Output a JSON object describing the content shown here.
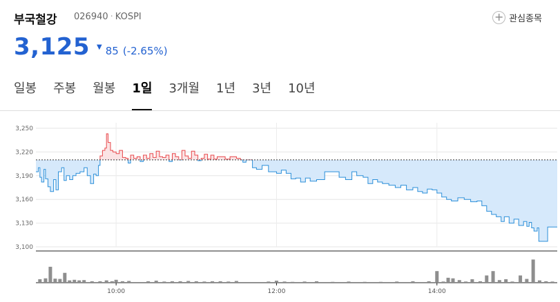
{
  "header": {
    "name": "부국철강",
    "code": "026940",
    "market": "KOSPI",
    "watch_label": "관심종목"
  },
  "quote": {
    "price": "3,125",
    "change": "85",
    "change_pct": "(-2.65%)",
    "direction_color": "#2362d1"
  },
  "tabs": [
    {
      "label": "일봉"
    },
    {
      "label": "주봉"
    },
    {
      "label": "월봉"
    },
    {
      "label": "1일"
    },
    {
      "label": "3개월"
    },
    {
      "label": "1년"
    },
    {
      "label": "3년"
    },
    {
      "label": "10년"
    }
  ],
  "active_tab": 3,
  "chart_data": {
    "type": "area",
    "baseline": 3210,
    "ylim": [
      3100,
      3250
    ],
    "y_ticks": [
      "3,250",
      "3,220",
      "3,190",
      "3,160",
      "3,130",
      "3,100"
    ],
    "y_tick_values": [
      3250,
      3220,
      3190,
      3160,
      3130,
      3100
    ],
    "x_ticks": [
      "10:00",
      "12:00",
      "14:00"
    ],
    "x_tick_times": [
      10.0,
      12.0,
      14.0
    ],
    "xlim": [
      9.0,
      15.5
    ],
    "up_color": "#e8474a",
    "down_color": "#2b8fd9",
    "price_series": [
      [
        9.0,
        3195
      ],
      [
        9.03,
        3200
      ],
      [
        9.05,
        3188
      ],
      [
        9.07,
        3182
      ],
      [
        9.1,
        3198
      ],
      [
        9.12,
        3186
      ],
      [
        9.15,
        3176
      ],
      [
        9.18,
        3170
      ],
      [
        9.22,
        3185
      ],
      [
        9.25,
        3172
      ],
      [
        9.28,
        3195
      ],
      [
        9.32,
        3200
      ],
      [
        9.35,
        3184
      ],
      [
        9.38,
        3190
      ],
      [
        9.42,
        3185
      ],
      [
        9.46,
        3190
      ],
      [
        9.5,
        3193
      ],
      [
        9.55,
        3195
      ],
      [
        9.6,
        3200
      ],
      [
        9.64,
        3190
      ],
      [
        9.68,
        3180
      ],
      [
        9.72,
        3192
      ],
      [
        9.75,
        3190
      ],
      [
        9.78,
        3203
      ],
      [
        9.8,
        3215
      ],
      [
        9.83,
        3222
      ],
      [
        9.86,
        3225
      ],
      [
        9.88,
        3243
      ],
      [
        9.9,
        3232
      ],
      [
        9.93,
        3222
      ],
      [
        9.96,
        3220
      ],
      [
        10.0,
        3218
      ],
      [
        10.04,
        3222
      ],
      [
        10.08,
        3213
      ],
      [
        10.12,
        3212
      ],
      [
        10.15,
        3206
      ],
      [
        10.18,
        3216
      ],
      [
        10.22,
        3212
      ],
      [
        10.26,
        3214
      ],
      [
        10.3,
        3208
      ],
      [
        10.34,
        3216
      ],
      [
        10.38,
        3212
      ],
      [
        10.42,
        3218
      ],
      [
        10.46,
        3213
      ],
      [
        10.5,
        3221
      ],
      [
        10.54,
        3214
      ],
      [
        10.58,
        3213
      ],
      [
        10.62,
        3216
      ],
      [
        10.66,
        3208
      ],
      [
        10.7,
        3218
      ],
      [
        10.74,
        3214
      ],
      [
        10.78,
        3210
      ],
      [
        10.82,
        3222
      ],
      [
        10.86,
        3215
      ],
      [
        10.9,
        3212
      ],
      [
        10.94,
        3221
      ],
      [
        10.98,
        3216
      ],
      [
        11.02,
        3209
      ],
      [
        11.06,
        3212
      ],
      [
        11.1,
        3217
      ],
      [
        11.14,
        3211
      ],
      [
        11.18,
        3216
      ],
      [
        11.22,
        3211
      ],
      [
        11.26,
        3214
      ],
      [
        11.3,
        3214
      ],
      [
        11.36,
        3211
      ],
      [
        11.42,
        3214
      ],
      [
        11.46,
        3214
      ],
      [
        11.5,
        3212
      ],
      [
        11.55,
        3210
      ],
      [
        11.58,
        3207
      ],
      [
        11.62,
        3210
      ],
      [
        11.66,
        3210
      ],
      [
        11.7,
        3200
      ],
      [
        11.75,
        3198
      ],
      [
        11.82,
        3203
      ],
      [
        11.9,
        3195
      ],
      [
        12.0,
        3193
      ],
      [
        12.06,
        3197
      ],
      [
        12.12,
        3193
      ],
      [
        12.18,
        3186
      ],
      [
        12.24,
        3187
      ],
      [
        12.3,
        3182
      ],
      [
        12.36,
        3187
      ],
      [
        12.42,
        3183
      ],
      [
        12.5,
        3185
      ],
      [
        12.6,
        3195
      ],
      [
        12.7,
        3195
      ],
      [
        12.78,
        3188
      ],
      [
        12.86,
        3185
      ],
      [
        12.94,
        3195
      ],
      [
        13.0,
        3190
      ],
      [
        13.08,
        3188
      ],
      [
        13.14,
        3180
      ],
      [
        13.2,
        3185
      ],
      [
        13.26,
        3182
      ],
      [
        13.32,
        3180
      ],
      [
        13.4,
        3178
      ],
      [
        13.48,
        3175
      ],
      [
        13.55,
        3178
      ],
      [
        13.62,
        3172
      ],
      [
        13.7,
        3175
      ],
      [
        13.76,
        3170
      ],
      [
        13.82,
        3168
      ],
      [
        13.88,
        3173
      ],
      [
        13.94,
        3172
      ],
      [
        14.0,
        3168
      ],
      [
        14.06,
        3163
      ],
      [
        14.12,
        3160
      ],
      [
        14.18,
        3158
      ],
      [
        14.26,
        3162
      ],
      [
        14.34,
        3160
      ],
      [
        14.42,
        3157
      ],
      [
        14.5,
        3158
      ],
      [
        14.56,
        3152
      ],
      [
        14.62,
        3145
      ],
      [
        14.68,
        3141
      ],
      [
        14.74,
        3138
      ],
      [
        14.8,
        3132
      ],
      [
        14.84,
        3138
      ],
      [
        14.9,
        3130
      ],
      [
        14.96,
        3135
      ],
      [
        15.02,
        3127
      ],
      [
        15.08,
        3132
      ],
      [
        15.12,
        3126
      ],
      [
        15.15,
        3131
      ],
      [
        15.18,
        3124
      ],
      [
        15.21,
        3120
      ],
      [
        15.25,
        3124
      ],
      [
        15.27,
        3107
      ],
      [
        15.34,
        3107
      ],
      [
        15.38,
        3125
      ],
      [
        15.5,
        3125
      ]
    ],
    "volume_ylim": [
      0,
      100
    ],
    "volume": [
      [
        9.05,
        12
      ],
      [
        9.12,
        15
      ],
      [
        9.18,
        55
      ],
      [
        9.24,
        14
      ],
      [
        9.3,
        13
      ],
      [
        9.36,
        34
      ],
      [
        9.42,
        8
      ],
      [
        9.48,
        10
      ],
      [
        9.54,
        8
      ],
      [
        9.6,
        9
      ],
      [
        9.7,
        5
      ],
      [
        9.8,
        5
      ],
      [
        9.88,
        8
      ],
      [
        9.95,
        5
      ],
      [
        10.0,
        10
      ],
      [
        10.08,
        5
      ],
      [
        10.16,
        6
      ],
      [
        10.4,
        5
      ],
      [
        10.5,
        7
      ],
      [
        10.6,
        4
      ],
      [
        10.7,
        5
      ],
      [
        10.8,
        5
      ],
      [
        10.9,
        6
      ],
      [
        11.0,
        5
      ],
      [
        11.1,
        4
      ],
      [
        11.2,
        5
      ],
      [
        11.3,
        5
      ],
      [
        11.4,
        4
      ],
      [
        11.5,
        6
      ],
      [
        11.9,
        4
      ],
      [
        12.0,
        7
      ],
      [
        12.1,
        4
      ],
      [
        12.2,
        3
      ],
      [
        12.35,
        4
      ],
      [
        12.5,
        5
      ],
      [
        12.7,
        3
      ],
      [
        12.9,
        4
      ],
      [
        13.1,
        3
      ],
      [
        13.3,
        3
      ],
      [
        13.5,
        4
      ],
      [
        13.7,
        5
      ],
      [
        13.9,
        5
      ],
      [
        14.0,
        40
      ],
      [
        14.08,
        4
      ],
      [
        14.14,
        17
      ],
      [
        14.2,
        15
      ],
      [
        14.28,
        9
      ],
      [
        14.36,
        4
      ],
      [
        14.44,
        12
      ],
      [
        14.54,
        5
      ],
      [
        14.62,
        25
      ],
      [
        14.7,
        40
      ],
      [
        14.78,
        9
      ],
      [
        14.86,
        12
      ],
      [
        14.94,
        4
      ],
      [
        15.04,
        25
      ],
      [
        15.12,
        13
      ],
      [
        15.2,
        80
      ],
      [
        15.28,
        8
      ],
      [
        15.36,
        5
      ],
      [
        15.44,
        4
      ]
    ]
  }
}
